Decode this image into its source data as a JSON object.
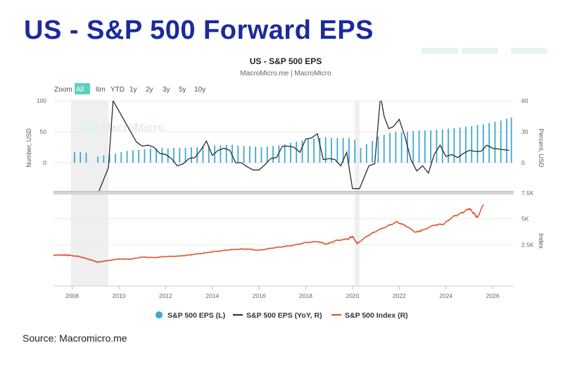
{
  "headline": "US - S&P 500 Forward EPS",
  "source": "Source: Macromicro.me",
  "chart_data": {
    "type": "bar+line",
    "title": "US - S&P 500 EPS",
    "subtitle": "MacroMicro.me | MacroMicro",
    "watermark": "MacroMicro",
    "zoom": {
      "label": "Zoom",
      "options": [
        "All",
        "6m",
        "YTD",
        "1y",
        "2y",
        "3y",
        "5y",
        "10y"
      ],
      "selected": "All"
    },
    "x_ticks": [
      "2008",
      "2010",
      "2012",
      "2014",
      "2016",
      "2018",
      "2020",
      "2022",
      "2024",
      "2026"
    ],
    "x_range": [
      2007.2,
      2026.9
    ],
    "shaded_periods": [
      [
        2007.95,
        2009.55
      ],
      [
        2020.1,
        2020.3
      ]
    ],
    "top_panel": {
      "left_axis": {
        "label": "Number, USD",
        "ticks": [
          "100",
          "50",
          "0"
        ],
        "range": [
          -50,
          100
        ]
      },
      "right_axis": {
        "label": "Percent, USD",
        "ticks": [
          "60",
          "30",
          "0"
        ],
        "range": [
          -30,
          60
        ]
      }
    },
    "bottom_panel": {
      "right_axis": {
        "label": "Index",
        "ticks": [
          "7.5K",
          "5K",
          "2.5K"
        ],
        "range": [
          -1500,
          7500
        ]
      }
    },
    "legend": [
      "S&P 500 EPS (L)",
      "S&P 500 EPS (YoY, R)",
      "S&P 500 Index (R)"
    ],
    "colors": {
      "eps": "#3fa8cf",
      "yoy": "#2b2b2b",
      "index": "#d9532c",
      "shade": "#efefef",
      "zoom_active": "#5ad1b8"
    },
    "series": [
      {
        "name": "S&P 500 EPS (L)",
        "axis": "left",
        "x": [
          2008.1,
          2008.35,
          2008.6,
          2009.1,
          2009.35,
          2009.6,
          2009.85,
          2010.1,
          2010.35,
          2010.6,
          2010.85,
          2011.1,
          2011.35,
          2011.6,
          2011.85,
          2012.1,
          2012.35,
          2012.6,
          2012.85,
          2013.1,
          2013.35,
          2013.6,
          2013.85,
          2014.1,
          2014.35,
          2014.6,
          2014.85,
          2015.1,
          2015.35,
          2015.6,
          2015.85,
          2016.1,
          2016.35,
          2016.6,
          2016.85,
          2017.1,
          2017.35,
          2017.6,
          2017.85,
          2018.1,
          2018.35,
          2018.6,
          2018.85,
          2019.1,
          2019.35,
          2019.6,
          2019.85,
          2020.1,
          2020.35,
          2020.6,
          2020.85,
          2021.1,
          2021.35,
          2021.6,
          2021.85,
          2022.1,
          2022.35,
          2022.6,
          2022.85,
          2023.1,
          2023.35,
          2023.6,
          2023.85,
          2024.1,
          2024.35,
          2024.6,
          2024.85,
          2025.1,
          2025.35,
          2025.6,
          2025.85,
          2026.1,
          2026.35,
          2026.6,
          2026.8
        ],
        "values": [
          17,
          17,
          16,
          10,
          12,
          14,
          15,
          17,
          19,
          20,
          21,
          22,
          23,
          23,
          24,
          23,
          24,
          24,
          24,
          25,
          25,
          26,
          27,
          28,
          28,
          29,
          29,
          28,
          27,
          27,
          26,
          25,
          26,
          27,
          28,
          30,
          32,
          34,
          36,
          38,
          39,
          40,
          41,
          40,
          40,
          40,
          40,
          37,
          24,
          30,
          35,
          42,
          45,
          48,
          50,
          49,
          50,
          51,
          52,
          52,
          52,
          53,
          54,
          55,
          56,
          57,
          58,
          59,
          61,
          62,
          64,
          66,
          68,
          71,
          73
        ]
      },
      {
        "name": "S&P 500 EPS (YoY, R)",
        "axis": "right",
        "x": [
          2009.1,
          2009.55,
          2009.75,
          2010.25,
          2010.75,
          2011.0,
          2011.25,
          2011.5,
          2011.75,
          2012.0,
          2012.25,
          2012.5,
          2012.75,
          2013.0,
          2013.25,
          2013.5,
          2013.75,
          2014.0,
          2014.25,
          2014.5,
          2014.75,
          2015.0,
          2015.25,
          2015.5,
          2015.75,
          2016.0,
          2016.25,
          2016.5,
          2016.75,
          2017.0,
          2017.25,
          2017.5,
          2017.75,
          2018.0,
          2018.25,
          2018.5,
          2018.75,
          2019.0,
          2019.25,
          2019.5,
          2019.75,
          2020.0,
          2020.3,
          2020.7,
          2020.95,
          2021.2,
          2021.35,
          2021.55,
          2021.75,
          2022.0,
          2022.25,
          2022.5,
          2022.75,
          2023.0,
          2023.25,
          2023.5,
          2023.75,
          2024.0,
          2024.25,
          2024.5,
          2024.75,
          2025.0,
          2025.25,
          2025.5,
          2025.75,
          2026.0,
          2026.3,
          2026.7
        ],
        "values": [
          -30,
          -5,
          60,
          40,
          20,
          16,
          17,
          15,
          9,
          8,
          4,
          -3,
          -1,
          4,
          5,
          12,
          21,
          7,
          12,
          14,
          12,
          0,
          0,
          -4,
          -7,
          -7,
          -2,
          4,
          5,
          16,
          16,
          15,
          10,
          23,
          24,
          28,
          3,
          4,
          3,
          -3,
          10,
          -25,
          -25,
          -3,
          -1,
          65,
          45,
          33,
          35,
          42,
          25,
          3,
          -8,
          -3,
          -10,
          8,
          17,
          6,
          8,
          5,
          9,
          12,
          11,
          11,
          17,
          14,
          13,
          12
        ]
      },
      {
        "name": "S&P 500 Index (R)",
        "axis": "right-bottom",
        "x": [
          2007.2,
          2007.6,
          2007.9,
          2008.3,
          2008.7,
          2009.1,
          2009.5,
          2010.0,
          2010.5,
          2011.0,
          2011.5,
          2012.0,
          2012.5,
          2013.0,
          2013.5,
          2014.0,
          2014.5,
          2015.0,
          2015.5,
          2016.0,
          2016.5,
          2017.0,
          2017.5,
          2018.0,
          2018.5,
          2018.9,
          2019.3,
          2019.8,
          2020.0,
          2020.2,
          2020.6,
          2021.0,
          2021.5,
          2021.9,
          2022.3,
          2022.7,
          2023.0,
          2023.5,
          2023.9,
          2024.3,
          2024.7,
          2025.0,
          2025.2,
          2025.35,
          2025.6
        ],
        "values": [
          1480,
          1500,
          1470,
          1350,
          1100,
          800,
          950,
          1120,
          1100,
          1300,
          1250,
          1350,
          1380,
          1500,
          1650,
          1800,
          1950,
          2050,
          2080,
          1950,
          2150,
          2300,
          2450,
          2700,
          2800,
          2550,
          2900,
          3050,
          3300,
          2600,
          3300,
          3800,
          4300,
          4700,
          4300,
          3700,
          3900,
          4400,
          4500,
          5200,
          5600,
          6000,
          5500,
          5100,
          6400
        ]
      }
    ]
  }
}
